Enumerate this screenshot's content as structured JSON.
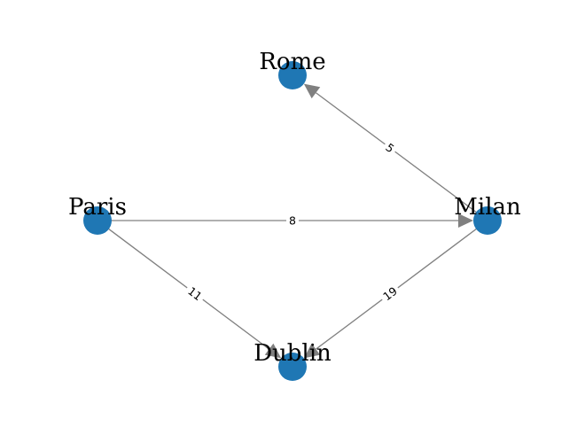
{
  "colors": {
    "node": "#1f77b4",
    "edge": "#808080",
    "label": "#000000"
  },
  "chart_data": {
    "type": "directed-graph",
    "nodes": [
      {
        "id": "Rome",
        "label": "Rome"
      },
      {
        "id": "Paris",
        "label": "Paris"
      },
      {
        "id": "Milan",
        "label": "Milan"
      },
      {
        "id": "Dublin",
        "label": "Dublin"
      }
    ],
    "edges": [
      {
        "source": "Milan",
        "target": "Rome",
        "weight": "5"
      },
      {
        "source": "Paris",
        "target": "Milan",
        "weight": "8"
      },
      {
        "source": "Paris",
        "target": "Dublin",
        "weight": "11"
      },
      {
        "source": "Milan",
        "target": "Dublin",
        "weight": "19"
      }
    ]
  }
}
